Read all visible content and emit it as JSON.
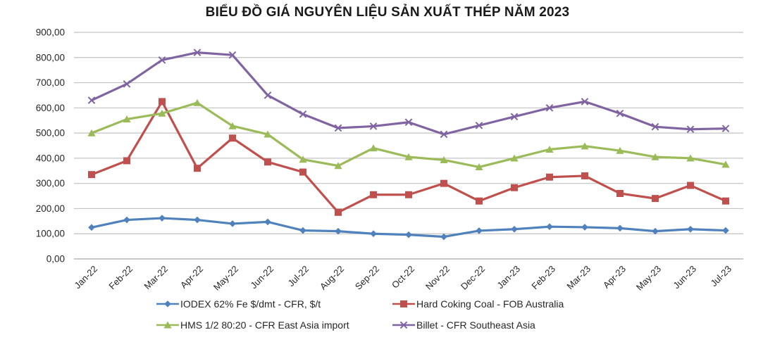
{
  "chart_data": {
    "type": "line",
    "title": "BIỂU ĐỒ GIÁ NGUYÊN LIỆU SẢN XUẤT THÉP NĂM 2023",
    "categories": [
      "Jan-22",
      "Feb-22",
      "Mar-22",
      "Apr-22",
      "May-22",
      "Jun-22",
      "Jul-22",
      "Aug-22",
      "Sep-22",
      "Oct-22",
      "Nov-22",
      "Dec-22",
      "Jan-23",
      "Feb-23",
      "Mar-23",
      "Apr-23",
      "May-23",
      "Jun-23",
      "Jul-23"
    ],
    "series": [
      {
        "name": "IODEX 62% Fe $/dmt - CFR, $/t",
        "color": "#4F81BD",
        "marker": "diamond",
        "values": [
          125,
          155,
          162,
          155,
          140,
          147,
          113,
          110,
          100,
          96,
          88,
          112,
          118,
          128,
          126,
          122,
          110,
          118,
          113
        ]
      },
      {
        "name": "Hard Coking Coal - FOB Australia",
        "color": "#C0504D",
        "marker": "square",
        "values": [
          335,
          390,
          625,
          360,
          480,
          385,
          345,
          185,
          255,
          255,
          300,
          230,
          283,
          325,
          330,
          260,
          240,
          292,
          230
        ]
      },
      {
        "name": "HMS 1/2 80:20 - CFR East Asia import",
        "color": "#9BBB59",
        "marker": "triangle",
        "values": [
          500,
          555,
          578,
          620,
          528,
          495,
          395,
          370,
          440,
          405,
          393,
          365,
          400,
          435,
          448,
          430,
          405,
          400,
          375
        ]
      },
      {
        "name": "Billet - CFR Southeast Asia",
        "color": "#8064A2",
        "marker": "x",
        "values": [
          630,
          695,
          790,
          820,
          810,
          650,
          575,
          520,
          527,
          543,
          495,
          530,
          565,
          600,
          625,
          578,
          525,
          515,
          518
        ]
      }
    ],
    "ylim": [
      0,
      900
    ],
    "ytick_step": 100,
    "ytick_labels": [
      "0,00",
      "100,00",
      "200,00",
      "300,00",
      "400,00",
      "500,00",
      "600,00",
      "700,00",
      "800,00",
      "900,00"
    ],
    "grid": "horizontal",
    "legend_position": "bottom",
    "gridline_color": "#c3c3c3",
    "axis_line_color": "#a6a6a6",
    "text_color": "#262626"
  }
}
